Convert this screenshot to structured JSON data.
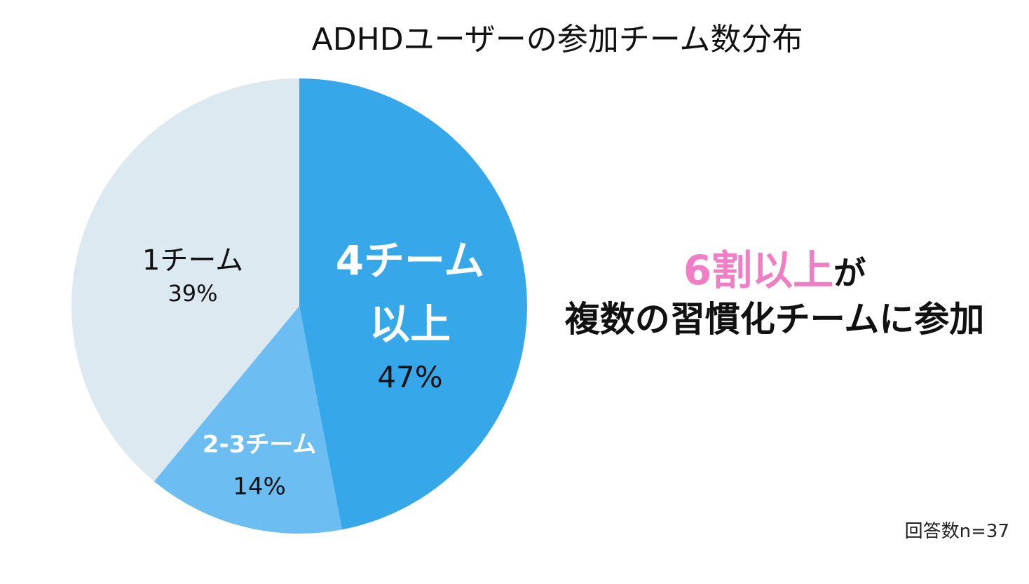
{
  "chart_data": {
    "type": "pie",
    "title": "ADHDユーザーの参加チーム数分布",
    "slices": [
      {
        "label": "4チーム以上",
        "label_lines": [
          "4チーム",
          "以上"
        ],
        "value": 47,
        "value_label": "47%",
        "color": "#36a8ea",
        "label_color": "#ffffff",
        "value_color": "#111111",
        "emphasis": true
      },
      {
        "label": "2-3チーム",
        "label_lines": [
          "2-3チーム"
        ],
        "value": 14,
        "value_label": "14%",
        "color": "#6cbdf1",
        "label_color": "#ffffff",
        "value_color": "#111111",
        "emphasis": false
      },
      {
        "label": "1チーム",
        "label_lines": [
          "1チーム"
        ],
        "value": 39,
        "value_label": "39%",
        "color": "#dde9f1",
        "label_color": "#111111",
        "value_color": "#111111",
        "emphasis": false
      }
    ],
    "start": "12 o'clock",
    "direction": "clockwise"
  },
  "callout": {
    "highlight": "6割以上",
    "highlight_color": "#f07ec4",
    "suffix": "が",
    "line2": "複数の習慣化チームに参加"
  },
  "footnote": "回答数n=37"
}
